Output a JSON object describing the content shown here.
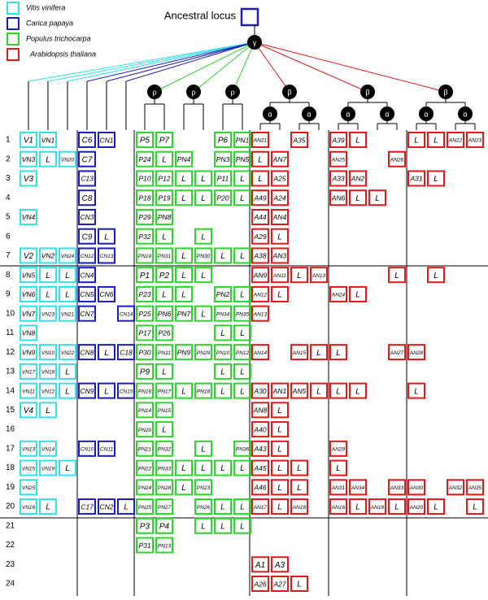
{
  "legend": [
    {
      "name": "Vitis  vinifera",
      "color": "#33e0e8"
    },
    {
      "name": "Carica  papaya",
      "color": "#1c1cb8"
    },
    {
      "name": "Populus  trichocarpa",
      "color": "#2bd62b"
    },
    {
      "name": "Arabidopsis  thaliana",
      "color": "#e01818"
    }
  ],
  "ancestral": "Ancestral locus",
  "tree": {
    "root": "γ",
    "rho": "ρ",
    "beta": "β",
    "alpha": "α"
  },
  "rows": [
    {
      "num": "1",
      "cells": [
        "V1",
        "VN1",
        null,
        "C6",
        "CN1",
        null,
        "P5",
        "P7",
        null,
        null,
        "P6",
        "PN1",
        "AN21",
        null,
        "A35",
        null,
        "A39",
        "L",
        null,
        null,
        "L",
        "L",
        "AN22",
        "AN23"
      ]
    },
    {
      "num": "2",
      "cells": [
        "VN3",
        "L",
        "VN20",
        "C7",
        null,
        null,
        "P24",
        "L",
        "PN4",
        null,
        "PN3",
        "PN5",
        "L",
        "AN7",
        null,
        null,
        "AN25",
        null,
        null,
        "AN26",
        null,
        null,
        null,
        null
      ]
    },
    {
      "num": "3",
      "cells": [
        "V3",
        null,
        null,
        "C13",
        null,
        null,
        "P10",
        "P12",
        "L",
        "L",
        "P11",
        "L",
        "L",
        "A25",
        null,
        null,
        "A33",
        "AN2",
        null,
        null,
        "A31",
        "L",
        null,
        null
      ]
    },
    {
      "num": "4",
      "cells": [
        null,
        null,
        null,
        "C8",
        null,
        null,
        "P18",
        "P19",
        "L",
        "L",
        "P20",
        "L",
        "A49",
        "A24",
        null,
        null,
        "AN6",
        "L",
        "L",
        null,
        null,
        null,
        null,
        null
      ]
    },
    {
      "num": "5",
      "cells": [
        "VN4",
        null,
        null,
        "CN3",
        null,
        null,
        "P29",
        "PN8",
        null,
        null,
        null,
        null,
        "A44",
        "AN4",
        null,
        null,
        null,
        null,
        null,
        null,
        null,
        null,
        null,
        null
      ]
    },
    {
      "num": "6",
      "cells": [
        null,
        null,
        null,
        "C9",
        "L",
        null,
        "P32",
        "L",
        null,
        "L",
        null,
        null,
        "A29",
        "L",
        null,
        null,
        null,
        null,
        null,
        null,
        null,
        null,
        null,
        null
      ]
    },
    {
      "num": "7",
      "cells": [
        "V2",
        "VN2",
        "VN24",
        "CN12",
        "CN13",
        null,
        "PN19",
        "PN31",
        "L",
        "PN30",
        "L",
        "L",
        "A38",
        "AN3",
        null,
        null,
        null,
        null,
        null,
        null,
        null,
        null,
        null,
        null
      ]
    },
    {
      "num": "8",
      "cells": [
        "VN5",
        "L",
        "L",
        "CN4",
        null,
        null,
        "P1",
        "P2",
        "L",
        "L",
        null,
        null,
        "AN9",
        "AN11",
        "L",
        "AN13",
        null,
        null,
        null,
        "L",
        null,
        "L",
        null,
        null
      ]
    },
    {
      "num": "9",
      "cells": [
        "VN6",
        "L",
        "L",
        "CN5",
        "CN6",
        null,
        "P23",
        "L",
        "L",
        null,
        "PN2",
        "L",
        "AN12",
        "L",
        null,
        null,
        "AN24",
        "L",
        null,
        null,
        null,
        null,
        null,
        null
      ]
    },
    {
      "num": "10",
      "cells": [
        "VN7",
        "VN23",
        "VN21",
        "CN7",
        null,
        "CN14",
        "P25",
        "PN6",
        "PN7",
        "L",
        "PN34",
        "PN35",
        "AN13",
        null,
        null,
        null,
        null,
        null,
        null,
        null,
        null,
        null,
        null,
        null
      ]
    },
    {
      "num": "11",
      "cells": [
        "VN8",
        null,
        null,
        null,
        null,
        null,
        "P17",
        "P26",
        null,
        null,
        "L",
        "L",
        null,
        null,
        null,
        null,
        null,
        null,
        null,
        null,
        null,
        null,
        null,
        null
      ]
    },
    {
      "num": "12",
      "cells": [
        "VN9",
        "VN10",
        "VN22",
        "CN8",
        "L",
        "C18",
        "P30",
        "PN11",
        "PN9",
        "PN29",
        "PN10",
        "PN12",
        "AN14",
        null,
        "AN15",
        "L",
        "L",
        null,
        null,
        "AN27",
        "AN28",
        null,
        null,
        null
      ]
    },
    {
      "num": "13",
      "cells": [
        "VN17",
        "VN18",
        "L",
        null,
        null,
        null,
        "P9",
        "L",
        null,
        null,
        "L",
        "L",
        null,
        null,
        null,
        null,
        null,
        null,
        null,
        null,
        null,
        null,
        null,
        null
      ]
    },
    {
      "num": "14",
      "cells": [
        "VN11",
        "VN12",
        "L",
        "CN9",
        "L",
        "CN15",
        "PN16",
        "PN17",
        "L",
        "PN18",
        "L",
        "L",
        "A30",
        "AN1",
        "AN5",
        "L",
        "L",
        "L",
        null,
        null,
        "L",
        null,
        null,
        null
      ]
    },
    {
      "num": "15",
      "cells": [
        "V4",
        "L",
        null,
        null,
        null,
        null,
        "PN14",
        "PN15",
        null,
        null,
        null,
        null,
        "AN8",
        "L",
        null,
        null,
        null,
        null,
        null,
        null,
        null,
        null,
        null,
        null
      ]
    },
    {
      "num": "16",
      "cells": [
        null,
        null,
        null,
        null,
        null,
        null,
        "PN20",
        "L",
        null,
        null,
        null,
        null,
        "A40",
        "L",
        null,
        null,
        null,
        null,
        null,
        null,
        null,
        null,
        null,
        null
      ]
    },
    {
      "num": "17",
      "cells": [
        "VN13",
        "VN14",
        null,
        "CN10",
        "CN11",
        null,
        "PN21",
        "PN32",
        null,
        "L",
        null,
        "PN36",
        "A43",
        "L",
        null,
        null,
        "AN29",
        null,
        null,
        null,
        null,
        null,
        null,
        null
      ]
    },
    {
      "num": "18",
      "cells": [
        "VN15",
        "VN19",
        "L",
        null,
        null,
        null,
        "PN22",
        "PN33",
        "L",
        "L",
        "L",
        "L",
        "A45",
        "L",
        "L",
        null,
        "L",
        null,
        null,
        null,
        null,
        null,
        null,
        null
      ]
    },
    {
      "num": "19",
      "cells": [
        "VN25",
        null,
        null,
        null,
        null,
        null,
        "PN24",
        "PN28",
        "L",
        "PN23",
        null,
        null,
        "A46",
        "L",
        "L",
        null,
        "AN31",
        "AN34",
        null,
        "AN33",
        "AN30",
        null,
        "AN32",
        "AN35"
      ]
    },
    {
      "num": "20",
      "cells": [
        "VN16",
        "L",
        null,
        "C17",
        "CN2",
        "L",
        "PN25",
        "PN27",
        null,
        "PN26",
        "L",
        "L",
        "AN17",
        "L",
        "AN18",
        null,
        "AN16",
        "L",
        "AN19",
        "L",
        "AN20",
        "L",
        null,
        "L"
      ]
    },
    {
      "num": "21",
      "cells": [
        null,
        null,
        null,
        null,
        null,
        null,
        "P3",
        "P4",
        null,
        "L",
        "L",
        "L",
        null,
        null,
        null,
        null,
        null,
        null,
        null,
        null,
        null,
        null,
        null,
        null
      ]
    },
    {
      "num": "22",
      "cells": [
        null,
        null,
        null,
        null,
        null,
        null,
        "P31",
        "PN13",
        null,
        null,
        null,
        null,
        null,
        null,
        null,
        null,
        null,
        null,
        null,
        null,
        null,
        null,
        null,
        null
      ]
    },
    {
      "num": "23",
      "cells": [
        null,
        null,
        null,
        null,
        null,
        null,
        null,
        null,
        null,
        null,
        null,
        null,
        "A1",
        "A3",
        null,
        null,
        null,
        null,
        null,
        null,
        null,
        null,
        null,
        null
      ]
    },
    {
      "num": "24",
      "cells": [
        null,
        null,
        null,
        null,
        null,
        null,
        null,
        null,
        null,
        null,
        null,
        null,
        "A26",
        "A27",
        "L",
        null,
        null,
        null,
        null,
        null,
        null,
        null,
        null,
        null
      ]
    }
  ]
}
